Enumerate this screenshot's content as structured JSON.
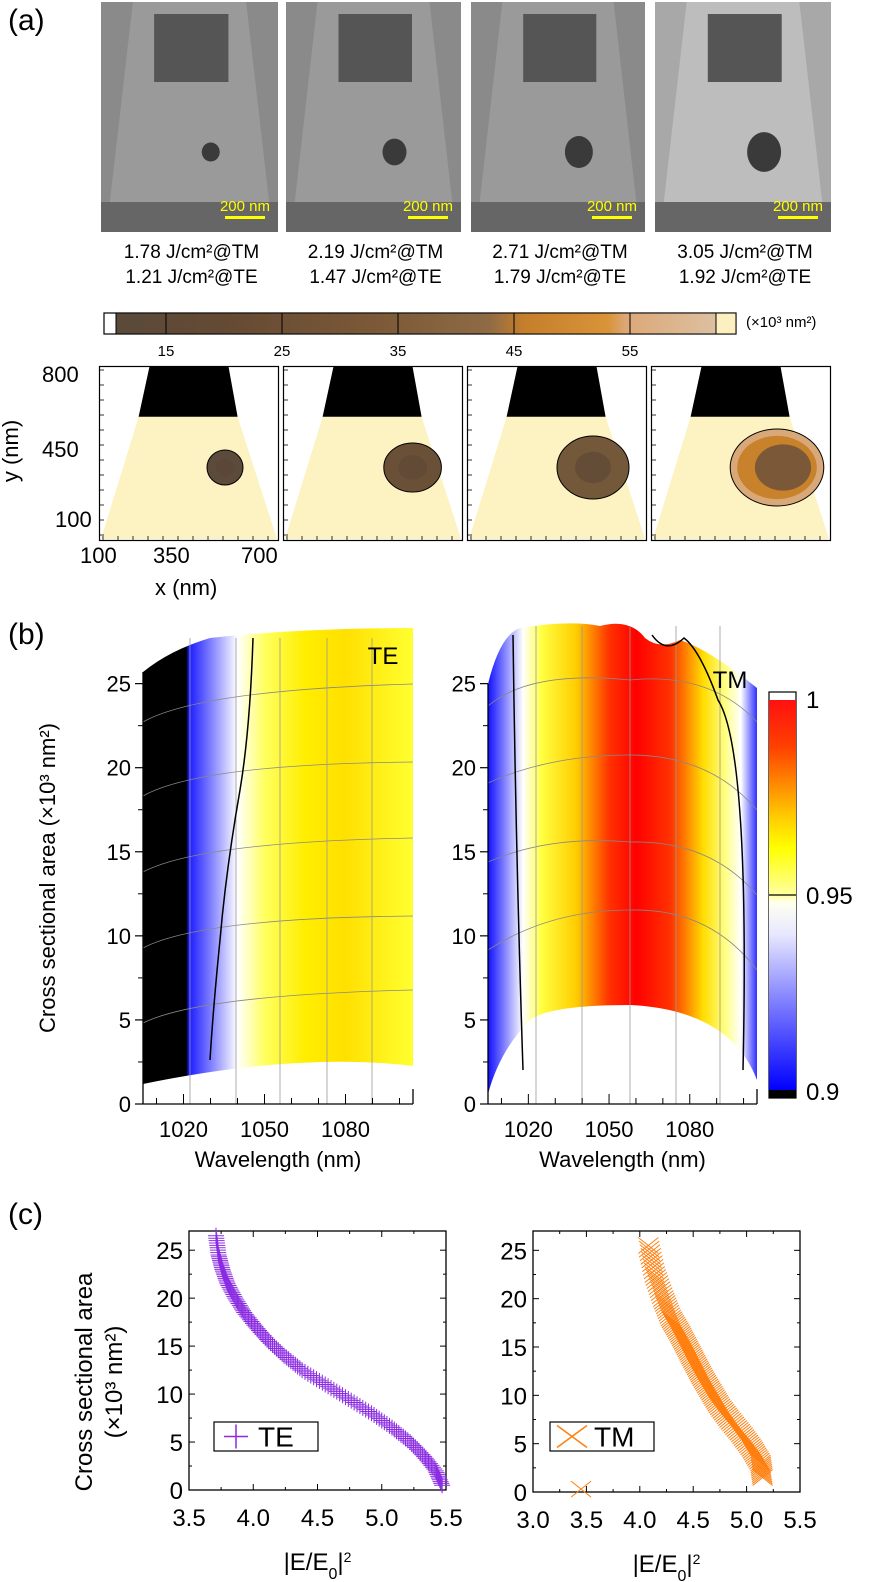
{
  "figure": {
    "panel_labels": [
      "(a)",
      "(b)",
      "(c)"
    ]
  },
  "panel_a": {
    "sem_images": [
      {
        "scale_bar": "200 nm",
        "fluence_tm": "1.78 J/cm²@TM",
        "fluence_te": "1.21 J/cm²@TE"
      },
      {
        "scale_bar": "200 nm",
        "fluence_tm": "2.19 J/cm²@TM",
        "fluence_te": "1.47 J/cm²@TE"
      },
      {
        "scale_bar": "200 nm",
        "fluence_tm": "2.71 J/cm²@TM",
        "fluence_te": "1.79 J/cm²@TE"
      },
      {
        "scale_bar": "200 nm",
        "fluence_tm": "3.05 J/cm²@TM",
        "fluence_te": "1.92 J/cm²@TE"
      }
    ],
    "colorbar": {
      "unit": "(×10³ nm²)",
      "ticks": [
        "15",
        "25",
        "35",
        "45",
        "55"
      ]
    },
    "schematic": {
      "ylabel": "y (nm)",
      "xlabel": "x (nm)",
      "yticks": [
        "800",
        "450",
        "100"
      ],
      "xticks": [
        "100",
        "350",
        "700"
      ]
    }
  },
  "chart_data": [
    {
      "type": "heatmap",
      "title": "TE",
      "xlabel": "Wavelength (nm)",
      "ylabel": "Cross sectional area (×10³ nm²)",
      "xticks": [
        "1020",
        "1050",
        "1080"
      ],
      "yticks": [
        "0",
        "5",
        "10",
        "15",
        "20",
        "25"
      ],
      "xlim": [
        1005,
        1105
      ],
      "ylim": [
        0,
        27
      ],
      "colorbar": {
        "min": 0.9,
        "mid": 0.95,
        "max": 1,
        "labels": [
          "1",
          "0.95",
          "0.9"
        ]
      },
      "contour_level": 0.95
    },
    {
      "type": "heatmap",
      "title": "TM",
      "xlabel": "Wavelength (nm)",
      "ylabel": "Cross sectional area (×10³ nm²)",
      "xticks": [
        "1020",
        "1050",
        "1080"
      ],
      "yticks": [
        "0",
        "5",
        "10",
        "15",
        "20",
        "25"
      ],
      "xlim": [
        1005,
        1105
      ],
      "ylim": [
        0,
        27
      ],
      "contour_level": 0.95
    },
    {
      "type": "scatter",
      "legend": "TE",
      "marker": "plus",
      "color": "#8a2be2",
      "xlabel": "|E/E0|²",
      "ylabel": "Cross sectional area (×10³ nm²)",
      "xticks": [
        "3.5",
        "4.0",
        "4.5",
        "5.0",
        "5.5"
      ],
      "yticks": [
        "0",
        "5",
        "10",
        "15",
        "20",
        "25"
      ],
      "xlim": [
        3.5,
        5.5
      ],
      "ylim": [
        0,
        27
      ],
      "x": [
        5.47,
        5.42,
        5.33,
        5.22,
        5.08,
        4.92,
        4.74,
        4.56,
        4.38,
        4.24,
        4.12,
        4.02,
        3.93,
        3.86,
        3.8,
        3.76,
        3.73,
        3.71
      ],
      "y": [
        0.5,
        2,
        3.5,
        5,
        6.5,
        8,
        9.5,
        11,
        12.5,
        14,
        15.5,
        17,
        18.5,
        20,
        21.5,
        23,
        24.5,
        26.5
      ]
    },
    {
      "type": "scatter",
      "legend": "TM",
      "marker": "x",
      "color": "#ff7f0e",
      "xlabel": "|E/E0|²",
      "ylabel": "Cross sectional area (×10³ nm²)",
      "xticks": [
        "3.0",
        "3.5",
        "4.0",
        "4.5",
        "5.0",
        "5.5"
      ],
      "yticks": [
        "0",
        "5",
        "10",
        "15",
        "20",
        "25"
      ],
      "xlim": [
        3.0,
        5.5
      ],
      "ylim": [
        0,
        27
      ],
      "x": [
        3.45,
        5.15,
        5.13,
        5.05,
        4.95,
        4.84,
        4.74,
        4.66,
        4.58,
        4.51,
        4.44,
        4.37,
        4.29,
        4.22,
        4.14,
        4.08
      ],
      "y": [
        0.3,
        1.5,
        3,
        4.5,
        6,
        7.5,
        9,
        10.5,
        12,
        13.5,
        15,
        16.5,
        18,
        20,
        22.5,
        25.5
      ]
    }
  ],
  "panel_c": {
    "ylabel_line1": "Cross sectional area",
    "ylabel_line2": "(×10³ nm²)"
  }
}
